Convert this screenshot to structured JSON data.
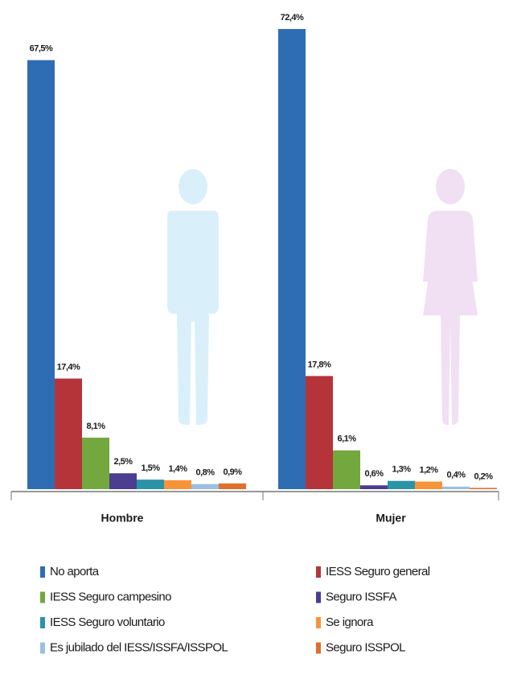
{
  "chart_data": {
    "type": "bar",
    "categories": [
      "Hombre",
      "Mujer"
    ],
    "series": [
      {
        "name": "No aporta",
        "color": "#2e6db4",
        "values": [
          67.5,
          72.4
        ],
        "value_labels": [
          "67,5%",
          "72,4%"
        ]
      },
      {
        "name": "IESS Seguro general",
        "color": "#b5343a",
        "values": [
          17.4,
          17.8
        ],
        "value_labels": [
          "17,4%",
          "17,8%"
        ]
      },
      {
        "name": "IESS Seguro campesino",
        "color": "#72a83e",
        "values": [
          8.1,
          6.1
        ],
        "value_labels": [
          "8,1%",
          "6,1%"
        ]
      },
      {
        "name": "Seguro ISSFA",
        "color": "#4b3d8f",
        "values": [
          2.5,
          0.6
        ],
        "value_labels": [
          "2,5%",
          "0,6%"
        ]
      },
      {
        "name": "IESS Seguro voluntario",
        "color": "#2a93a6",
        "values": [
          1.5,
          1.3
        ],
        "value_labels": [
          "1,5%",
          "1,3%"
        ]
      },
      {
        "name": "Se ignora",
        "color": "#f7943a",
        "values": [
          1.4,
          1.2
        ],
        "value_labels": [
          "1,4%",
          "1,2%"
        ]
      },
      {
        "name": "Es jubilado del IESS/ISSFA/ISSPOL",
        "color": "#9cbfe3",
        "values": [
          0.8,
          0.4
        ],
        "value_labels": [
          "0,8%",
          "0,4%"
        ]
      },
      {
        "name": "Seguro ISSPOL",
        "color": "#e0702a",
        "values": [
          0.9,
          0.2
        ],
        "value_labels": [
          "0,9%",
          "0,2%"
        ]
      }
    ]
  }
}
